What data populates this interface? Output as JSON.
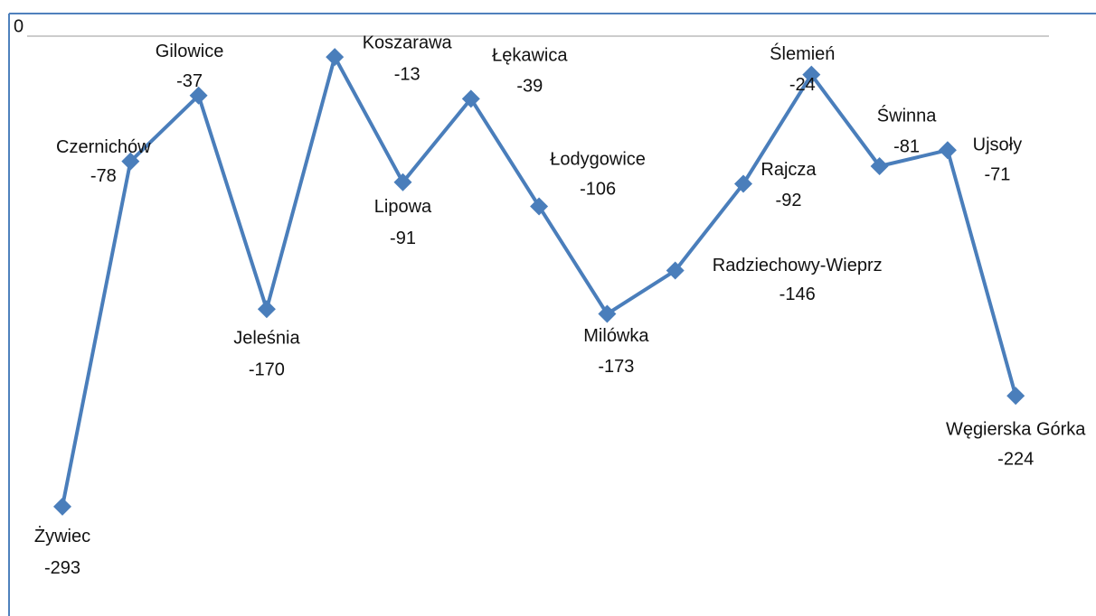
{
  "chart_data": {
    "type": "line",
    "categories": [
      "Żywiec",
      "Czernichów",
      "Gilowice",
      "Jeleśnia",
      "Koszarawa",
      "Lipowa",
      "Łękawica",
      "Łodygowice",
      "Milówka",
      "Radziechowy-Wieprz",
      "Rajcza",
      "Ślemień",
      "Świnna",
      "Ujsoły",
      "Węgierska Górka"
    ],
    "series": [
      {
        "color": "#4a7ebb",
        "values": [
          -293,
          -78,
          -37,
          -170,
          -13,
          -91,
          -39,
          -106,
          -173,
          -146,
          -92,
          -24,
          -81,
          -71,
          -224
        ]
      }
    ],
    "ylim": [
      -360,
      0
    ],
    "yticks": [
      0
    ]
  }
}
